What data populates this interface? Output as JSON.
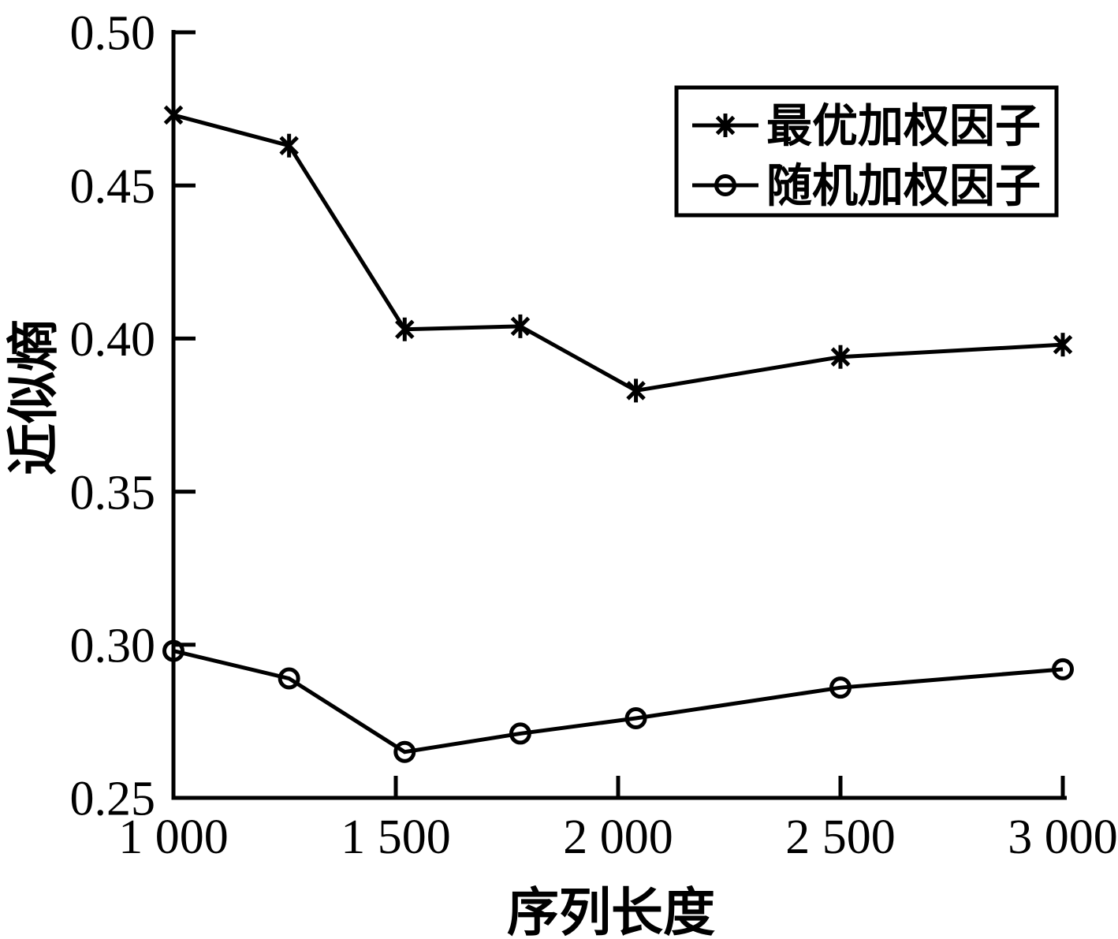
{
  "figure": {
    "background": "#ffffff",
    "foreground": "#000000"
  },
  "chart_data": {
    "type": "line",
    "title": "",
    "xlabel": "序列长度",
    "ylabel": "近似熵",
    "xlim": [
      1000,
      3000
    ],
    "ylim": [
      0.25,
      0.5
    ],
    "grid": false,
    "legend_position": "top-right",
    "x_ticks": [
      {
        "value": 1000,
        "label": "1 000"
      },
      {
        "value": 1500,
        "label": "1 500"
      },
      {
        "value": 2000,
        "label": "2 000"
      },
      {
        "value": 2500,
        "label": "2 500"
      },
      {
        "value": 3000,
        "label": "3 000"
      }
    ],
    "y_ticks": [
      {
        "value": 0.25,
        "label": "0.25"
      },
      {
        "value": 0.3,
        "label": "0.30"
      },
      {
        "value": 0.35,
        "label": "0.35"
      },
      {
        "value": 0.4,
        "label": "0.40"
      },
      {
        "value": 0.45,
        "label": "0.45"
      },
      {
        "value": 0.5,
        "label": "0.50"
      }
    ],
    "x": [
      1000,
      1260,
      1520,
      1780,
      2040,
      2500,
      3000
    ],
    "series": [
      {
        "name": "最优加权因子",
        "marker": "asterisk",
        "values": [
          0.473,
          0.463,
          0.403,
          0.404,
          0.383,
          0.394,
          0.398
        ]
      },
      {
        "name": "随机加权因子",
        "marker": "circle",
        "values": [
          0.298,
          0.289,
          0.265,
          0.271,
          0.276,
          0.286,
          0.292
        ]
      }
    ]
  }
}
